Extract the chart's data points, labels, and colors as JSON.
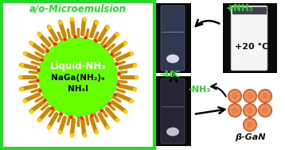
{
  "bg_color": "#ffffff",
  "left_border_color": "#22dd22",
  "center_circle_color": "#66ff00",
  "spike_color": "#cc8800",
  "spike_tip_color": "#ffcc00",
  "red_dot_color": "#ff2200",
  "title_text": "a/o-Microemulsion",
  "title_color": "#22dd22",
  "center_text1": "Liquid-NH₃",
  "center_text2": "NaGa(NH₂)₄",
  "center_text3": "NH₄I",
  "label_minus40": "-40",
  "label_minus40b": "°C",
  "label_plus20": "+20 °C",
  "label_plusNH3": "+NH₃",
  "label_minusNH3": "-NH₃",
  "label_bGaN": "β-GaN",
  "green_label_color": "#22dd22",
  "black_label_color": "#111111",
  "gan_particle_fill": "#e8804a",
  "gan_particle_edge": "#cc5520",
  "gan_particle_inner": "#f0a070",
  "photo_bg": "#0a0a0a",
  "tube_clear": "#2a3040",
  "tube_milky": "#f0f0f0",
  "tube_edge": "#444444"
}
